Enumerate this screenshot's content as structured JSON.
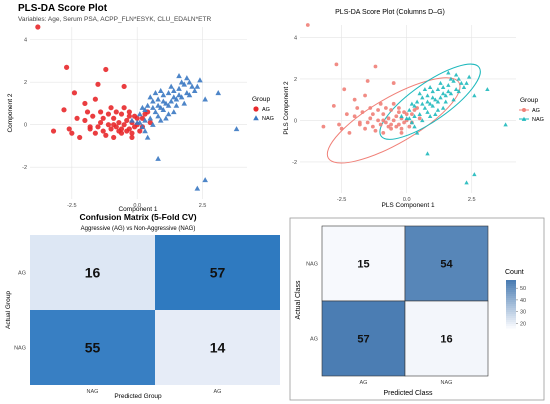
{
  "chart_data": [
    {
      "type": "scatter",
      "title": "PLS-DA Score Plot",
      "subtitle": "Variables: Age, Serum PSA, ACPP_FLN*ESYK, CLU_EDALN*ETR",
      "xlabel": "Component 1",
      "ylabel": "Component 2",
      "xlim": [
        -4.1,
        4.2
      ],
      "ylim": [
        -3.5,
        4.6
      ],
      "xticks": [
        -2.5,
        0.0,
        2.5
      ],
      "xtick_labels": [
        "-2.5",
        "0.0",
        "2.5"
      ],
      "yticks": [
        -2,
        0,
        2,
        4
      ],
      "ytick_labels": [
        "-2",
        "0",
        "2",
        "4"
      ],
      "grid": true,
      "legend_title": "Group",
      "legend_position": "right",
      "series": [
        {
          "name": "AG",
          "color": "#e8282b",
          "marker": "circle",
          "points": [
            [
              -3.8,
              4.6
            ],
            [
              -2.7,
              2.7
            ],
            [
              -1.2,
              2.6
            ],
            [
              -1.5,
              1.9
            ],
            [
              -1.6,
              1.2
            ],
            [
              -2.0,
              1.0
            ],
            [
              -2.4,
              1.5
            ],
            [
              -0.5,
              1.8
            ],
            [
              -1.0,
              0.8
            ],
            [
              -2.8,
              0.7
            ],
            [
              -2.3,
              0.3
            ],
            [
              -2.0,
              0.2
            ],
            [
              -1.8,
              -0.1
            ],
            [
              -1.7,
              0.4
            ],
            [
              -1.4,
              0.1
            ],
            [
              -1.3,
              -0.3
            ],
            [
              -1.1,
              0.0
            ],
            [
              -1.0,
              -0.2
            ],
            [
              -0.9,
              0.3
            ],
            [
              -0.8,
              -0.1
            ],
            [
              -0.7,
              0.1
            ],
            [
              -0.6,
              -0.4
            ],
            [
              -0.5,
              0.0
            ],
            [
              -0.4,
              0.2
            ],
            [
              -0.3,
              -0.2
            ],
            [
              -0.2,
              0.1
            ],
            [
              -0.1,
              0.4
            ],
            [
              0.0,
              0.0
            ],
            [
              0.1,
              -0.3
            ],
            [
              0.2,
              0.3
            ],
            [
              -0.6,
              0.5
            ],
            [
              -1.2,
              -0.5
            ],
            [
              -1.6,
              -0.4
            ],
            [
              -2.6,
              -0.2
            ],
            [
              -3.2,
              -0.3
            ],
            [
              -2.2,
              -0.6
            ],
            [
              -0.9,
              -0.6
            ],
            [
              -0.3,
              0.6
            ],
            [
              0.3,
              0.5
            ],
            [
              0.5,
              0.1
            ],
            [
              -0.2,
              -0.6
            ],
            [
              -1.4,
              0.6
            ],
            [
              -0.7,
              -0.3
            ],
            [
              -1.8,
              -0.2
            ],
            [
              -0.4,
              -0.3
            ],
            [
              0.0,
              0.3
            ],
            [
              -1.1,
              0.5
            ],
            [
              -0.5,
              0.8
            ],
            [
              -2.5,
              -0.4
            ],
            [
              -0.8,
              0.6
            ],
            [
              -0.2,
              -0.4
            ],
            [
              -1.5,
              -0.1
            ],
            [
              0.2,
              -0.1
            ],
            [
              -0.6,
              -0.2
            ],
            [
              -1.9,
              0.6
            ],
            [
              -0.1,
              -0.1
            ],
            [
              0.4,
              0.6
            ],
            [
              -1.3,
              0.3
            ],
            [
              -0.9,
              0.0
            ],
            [
              -0.3,
              0.4
            ]
          ]
        },
        {
          "name": "NAG",
          "color": "#3a78c2",
          "marker": "triangle",
          "points": [
            [
              -0.2,
              0.2
            ],
            [
              0.1,
              0.5
            ],
            [
              0.3,
              0.7
            ],
            [
              0.4,
              0.9
            ],
            [
              0.6,
              1.1
            ],
            [
              0.7,
              0.6
            ],
            [
              0.8,
              1.2
            ],
            [
              0.9,
              0.8
            ],
            [
              1.0,
              1.4
            ],
            [
              1.1,
              1.0
            ],
            [
              1.2,
              1.5
            ],
            [
              1.3,
              1.1
            ],
            [
              1.4,
              1.6
            ],
            [
              1.5,
              1.2
            ],
            [
              1.6,
              1.7
            ],
            [
              1.7,
              1.3
            ],
            [
              1.8,
              1.9
            ],
            [
              1.9,
              1.5
            ],
            [
              2.0,
              1.4
            ],
            [
              2.1,
              1.8
            ],
            [
              0.5,
              0.3
            ],
            [
              0.6,
              0.0
            ],
            [
              0.2,
              -0.1
            ],
            [
              0.0,
              0.1
            ],
            [
              0.8,
              0.4
            ],
            [
              1.0,
              0.7
            ],
            [
              1.2,
              0.9
            ],
            [
              0.3,
              0.2
            ],
            [
              0.9,
              1.6
            ],
            [
              1.5,
              0.9
            ],
            [
              2.3,
              1.8
            ],
            [
              2.6,
              1.2
            ],
            [
              3.1,
              1.5
            ],
            [
              2.4,
              2.1
            ],
            [
              1.6,
              2.3
            ],
            [
              0.7,
              1.5
            ],
            [
              1.1,
              0.3
            ],
            [
              0.4,
              -0.6
            ],
            [
              1.8,
              1.0
            ],
            [
              0.2,
              0.8
            ],
            [
              0.9,
              0.2
            ],
            [
              1.3,
              1.8
            ],
            [
              1.0,
              1.1
            ],
            [
              1.4,
              0.6
            ],
            [
              0.6,
              0.8
            ],
            [
              0.1,
              0.1
            ],
            [
              1.7,
              2.0
            ],
            [
              2.2,
              1.6
            ],
            [
              3.8,
              -0.2
            ],
            [
              2.6,
              -2.6
            ],
            [
              2.3,
              -3.0
            ],
            [
              0.8,
              -1.6
            ],
            [
              1.9,
              2.2
            ],
            [
              0.5,
              1.3
            ],
            [
              1.2,
              0.5
            ],
            [
              0.3,
              -0.3
            ],
            [
              1.6,
              1.4
            ],
            [
              2.0,
              2.0
            ],
            [
              0.8,
              0.9
            ],
            [
              1.4,
              1.3
            ]
          ]
        }
      ]
    },
    {
      "type": "scatter",
      "title": "PLS-DA Score Plot (Columns D–G)",
      "xlabel": "PLS Component 1",
      "ylabel": "PLS Component 2",
      "xlim": [
        -4.1,
        4.2
      ],
      "ylim": [
        -3.5,
        4.6
      ],
      "xticks": [
        -2.5,
        0.0,
        2.5
      ],
      "xtick_labels": [
        "-2.5",
        "0.0",
        "2.5"
      ],
      "yticks": [
        -2,
        0,
        2,
        4
      ],
      "ytick_labels": [
        "-2",
        "0",
        "2",
        "4"
      ],
      "grid": true,
      "legend_title": "Group",
      "legend_position": "right",
      "series": [
        {
          "name": "AG",
          "color": "#f08078",
          "marker": "circle",
          "ellipse": {
            "cx": -0.5,
            "cy": 0.0,
            "rx": 2.9,
            "ry": 1.1,
            "angle_deg": 30
          }
        },
        {
          "name": "NAG",
          "color": "#1fb9bd",
          "marker": "triangle",
          "ellipse": {
            "cx": 0.9,
            "cy": 0.9,
            "rx": 2.3,
            "ry": 0.9,
            "angle_deg": 35
          }
        }
      ]
    },
    {
      "type": "heatmap",
      "title": "Confusion Matrix (5-Fold CV)",
      "subtitle": "Aggressive (AG) vs Non-Aggressive (NAG)",
      "xlabel": "Predicted Group",
      "ylabel": "Actual Group",
      "x_categories": [
        "NAG",
        "AG"
      ],
      "y_categories": [
        "AG",
        "NAG"
      ],
      "cells": [
        [
          16,
          57
        ],
        [
          55,
          14
        ]
      ],
      "colors": {
        "low": "#e6ecf7",
        "high": "#2f7ac0"
      }
    },
    {
      "type": "heatmap",
      "xlabel": "Predicted Class",
      "ylabel": "Actual Class",
      "x_categories": [
        "AG",
        "NAG"
      ],
      "y_categories": [
        "NAG",
        "AG"
      ],
      "cells": [
        [
          15,
          54
        ],
        [
          57,
          16
        ]
      ],
      "legend_title": "Count",
      "legend_ticks": [
        50,
        40,
        30,
        20
      ],
      "colors": {
        "low": "#f7f9fd",
        "high": "#4b7db3"
      }
    }
  ]
}
